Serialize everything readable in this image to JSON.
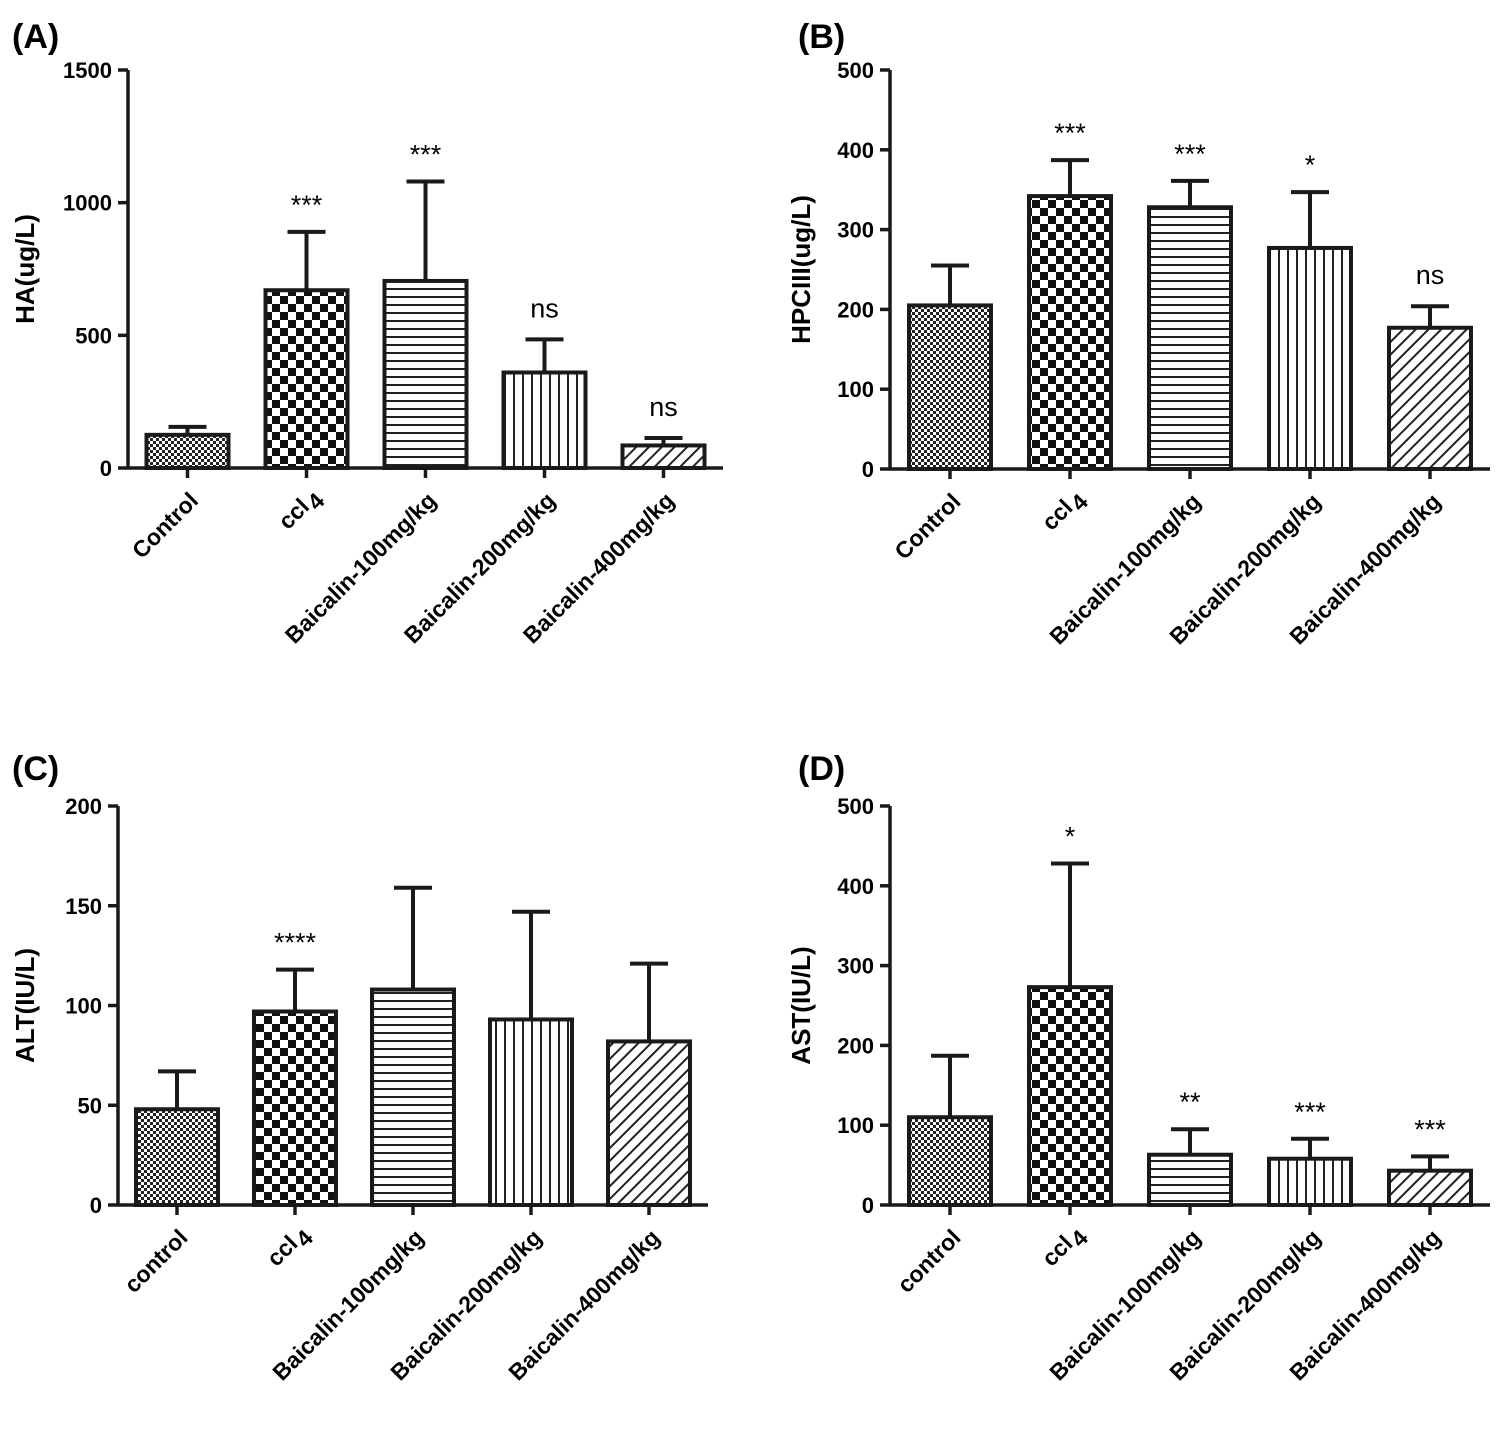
{
  "figure": {
    "chart_data": [
      {
        "type": "bar",
        "panel_label": "(A)",
        "ylabel": "HA(ug/L)",
        "ylim": [
          0,
          1500
        ],
        "yticks": [
          0,
          500,
          1000,
          1500
        ],
        "categories": [
          {
            "main": "Control",
            "sub": ""
          },
          {
            "main": "ccl",
            "sub": "4"
          },
          {
            "main": "Baicalin-100mg/kg",
            "sub": ""
          },
          {
            "main": "Baicalin-200mg/kg",
            "sub": ""
          },
          {
            "main": "Baicalin-400mg/kg",
            "sub": ""
          }
        ],
        "values": [
          125,
          670,
          705,
          360,
          85
        ],
        "errors": [
          30,
          220,
          375,
          125,
          28
        ],
        "significance": [
          "",
          "***",
          "***",
          "ns",
          "ns"
        ]
      },
      {
        "type": "bar",
        "panel_label": "(B)",
        "ylabel": "HPCIII(ug/L)",
        "ylim": [
          0,
          500
        ],
        "yticks": [
          0,
          100,
          200,
          300,
          400,
          500
        ],
        "categories": [
          {
            "main": "Control",
            "sub": ""
          },
          {
            "main": "ccl",
            "sub": "4"
          },
          {
            "main": "Baicalin-100mg/kg",
            "sub": ""
          },
          {
            "main": "Baicalin-200mg/kg",
            "sub": ""
          },
          {
            "main": "Baicalin-400mg/kg",
            "sub": ""
          }
        ],
        "values": [
          205,
          342,
          328,
          277,
          177
        ],
        "errors": [
          50,
          45,
          33,
          70,
          27
        ],
        "significance": [
          "",
          "***",
          "***",
          "*",
          "ns"
        ]
      },
      {
        "type": "bar",
        "panel_label": "(C)",
        "ylabel": "ALT(IU/L)",
        "ylim": [
          0,
          200
        ],
        "yticks": [
          0,
          50,
          100,
          150,
          200
        ],
        "categories": [
          {
            "main": "control",
            "sub": ""
          },
          {
            "main": "ccl",
            "sub": "4"
          },
          {
            "main": "Baicalin-100mg/kg",
            "sub": ""
          },
          {
            "main": "Baicalin-200mg/kg",
            "sub": ""
          },
          {
            "main": "Baicalin-400mg/kg",
            "sub": ""
          }
        ],
        "values": [
          48,
          97,
          108,
          93,
          82
        ],
        "errors": [
          19,
          21,
          51,
          54,
          39
        ],
        "significance": [
          "",
          "****",
          "",
          "",
          ""
        ]
      },
      {
        "type": "bar",
        "panel_label": "(D)",
        "ylabel": "AST(IU/L)",
        "ylim": [
          0,
          500
        ],
        "yticks": [
          0,
          100,
          200,
          300,
          400,
          500
        ],
        "categories": [
          {
            "main": "control",
            "sub": ""
          },
          {
            "main": "ccl",
            "sub": "4"
          },
          {
            "main": "Baicalin-100mg/kg",
            "sub": ""
          },
          {
            "main": "Baicalin-200mg/kg",
            "sub": ""
          },
          {
            "main": "Baicalin-400mg/kg",
            "sub": ""
          }
        ],
        "values": [
          110,
          273,
          63,
          58,
          43
        ],
        "errors": [
          77,
          155,
          32,
          25,
          18
        ],
        "significance": [
          "",
          "*",
          "**",
          "***",
          "***"
        ]
      }
    ]
  }
}
